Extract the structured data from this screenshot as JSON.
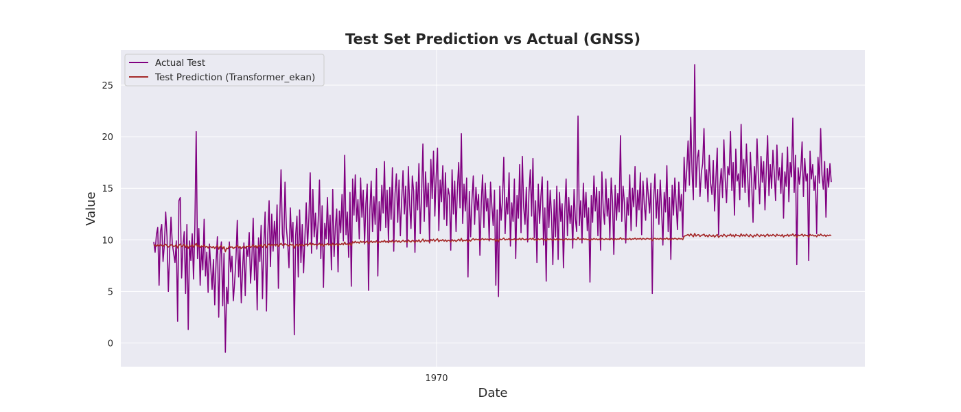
{
  "chart_data": {
    "type": "line",
    "title": "Test Set Prediction vs Actual (GNSS)",
    "xlabel": "Date",
    "ylabel": "Value",
    "x_ticks": [
      "1970"
    ],
    "y_ticks": [
      0,
      5,
      10,
      15,
      20,
      25
    ],
    "ylim": [
      -2.3,
      28.4
    ],
    "legend_position": "upper-left",
    "grid": true,
    "colors": {
      "background": "#eaeaf2",
      "grid": "#ffffff",
      "actual": "#800080",
      "prediction": "#a52a2a"
    },
    "series": [
      {
        "name": "Actual Test",
        "values": [
          9.8,
          8.8,
          10.5,
          11.2,
          5.6,
          10.8,
          11.5,
          7.9,
          9.5,
          12.7,
          10.3,
          5.0,
          8.9,
          12.2,
          9.6,
          8.7,
          7.8,
          9.9,
          2.1,
          13.8,
          14.1,
          6.3,
          9.4,
          10.8,
          4.8,
          11.5,
          1.3,
          9.9,
          8.0,
          10.6,
          6.2,
          11.3,
          20.5,
          8.2,
          11.1,
          5.6,
          9.3,
          7.1,
          12.0,
          6.5,
          8.8,
          4.9,
          9.6,
          7.3,
          5.2,
          8.1,
          3.7,
          7.9,
          10.3,
          2.5,
          8.6,
          9.8,
          3.6,
          8.7,
          -0.9,
          5.4,
          3.8,
          9.8,
          6.9,
          8.4,
          4.1,
          5.9,
          8.2,
          11.9,
          6.4,
          9.3,
          3.9,
          7.2,
          9.7,
          4.6,
          9.3,
          8.4,
          10.7,
          5.8,
          8.2,
          12.1,
          6.1,
          9.4,
          3.2,
          10.2,
          7.9,
          11.4,
          4.3,
          9.6,
          12.7,
          3.1,
          10.5,
          13.8,
          7.4,
          12.5,
          8.9,
          11.8,
          9.4,
          13.4,
          5.3,
          11.9,
          16.8,
          10.6,
          9.2,
          15.6,
          11.2,
          9.7,
          7.3,
          13.1,
          9.8,
          11.7,
          0.8,
          10.4,
          12.3,
          6.4,
          12.9,
          7.8,
          11.5,
          6.8,
          10.2,
          13.6,
          9.4,
          12.1,
          16.5,
          8.7,
          14.9,
          10.3,
          12.6,
          9.1,
          11.8,
          15.8,
          8.2,
          13.3,
          5.4,
          11.6,
          10.1,
          14.1,
          9.5,
          12.4,
          7.1,
          14.9,
          8.4,
          11.3,
          13.0,
          6.9,
          12.8,
          10.7,
          14.4,
          9.9,
          18.2,
          10.5,
          12.7,
          8.3,
          14.6,
          5.5,
          15.9,
          12.4,
          16.3,
          11.8,
          13.9,
          10.1,
          16.0,
          12.2,
          14.8,
          9.6,
          13.5,
          15.4,
          5.1,
          12.9,
          15.7,
          10.8,
          14.2,
          11.5,
          16.9,
          6.5,
          13.7,
          10.9,
          15.3,
          12.6,
          17.6,
          11.2,
          14.8,
          9.9,
          15.1,
          12.0,
          17.0,
          8.9,
          14.5,
          16.4,
          11.7,
          15.8,
          10.4,
          13.9,
          16.7,
          12.5,
          15.2,
          9.3,
          17.1,
          13.4,
          11.1,
          16.2,
          14.7,
          8.8,
          15.6,
          12.9,
          17.4,
          10.6,
          14.3,
          19.3,
          11.8,
          16.6,
          13.2,
          15.5,
          9.7,
          17.8,
          14.0,
          18.6,
          12.3,
          16.1,
          18.9,
          10.9,
          15.8,
          13.7,
          17.2,
          12.0,
          16.5,
          11.4,
          15.0,
          14.3,
          9.0,
          16.8,
          12.5,
          15.7,
          10.8,
          14.9,
          17.5,
          13.1,
          20.3,
          11.6,
          15.4,
          12.8,
          16.0,
          6.4,
          14.7,
          10.3,
          13.9,
          16.2,
          11.5,
          15.1,
          12.9,
          14.4,
          8.5,
          13.6,
          16.3,
          11.2,
          15.5,
          12.8,
          14.0,
          9.9,
          15.6,
          13.3,
          11.4,
          14.8,
          5.6,
          12.9,
          4.5,
          15.2,
          11.9,
          13.8,
          18.0,
          10.6,
          14.1,
          12.5,
          16.5,
          9.4,
          13.6,
          11.8,
          15.9,
          8.2,
          14.3,
          12.1,
          17.3,
          10.7,
          18.1,
          13.2,
          11.5,
          15.1,
          9.8,
          14.6,
          16.8,
          12.3,
          17.9,
          10.2,
          13.8,
          7.8,
          15.4,
          11.6,
          14.2,
          16.1,
          9.5,
          13.1,
          6.0,
          15.7,
          11.2,
          14.8,
          12.4,
          7.6,
          13.9,
          10.3,
          15.2,
          8.1,
          14.6,
          11.8,
          13.5,
          7.3,
          12.7,
          15.9,
          10.4,
          14.1,
          11.6,
          13.3,
          9.2,
          14.9,
          12.0,
          10.8,
          22.0,
          11.4,
          13.8,
          9.7,
          15.5,
          12.2,
          14.6,
          10.9,
          13.1,
          5.9,
          14.3,
          11.7,
          16.2,
          12.8,
          15.1,
          10.4,
          14.7,
          9.0,
          16.6,
          13.0,
          11.5,
          15.9,
          12.3,
          14.0,
          10.1,
          16.0,
          13.7,
          8.6,
          15.3,
          11.9,
          14.5,
          12.7,
          20.1,
          11.8,
          15.2,
          13.6,
          9.7,
          14.1,
          12.4,
          16.3,
          10.9,
          15.0,
          13.2,
          17.1,
          11.3,
          14.8,
          12.9,
          16.5,
          10.5,
          15.7,
          13.4,
          11.9,
          16.0,
          14.3,
          12.6,
          15.5,
          4.8,
          13.8,
          16.4,
          12.1,
          14.9,
          11.5,
          15.8,
          13.0,
          9.5,
          14.6,
          12.7,
          17.2,
          10.8,
          14.1,
          8.1,
          15.3,
          12.4,
          16.0,
          13.5,
          11.0,
          15.6,
          12.8,
          14.4,
          10.3,
          18.0,
          14.7,
          16.8,
          19.6,
          15.3,
          21.9,
          16.6,
          13.9,
          27.0,
          15.1,
          17.9,
          18.7,
          14.2,
          16.5,
          17.4,
          20.8,
          15.0,
          16.8,
          13.7,
          18.2,
          15.5,
          14.4,
          17.7,
          12.8,
          16.0,
          18.9,
          10.5,
          15.2,
          16.9,
          14.1,
          19.7,
          15.9,
          13.6,
          17.1,
          16.3,
          20.5,
          14.8,
          17.5,
          12.4,
          18.8,
          15.7,
          16.4,
          13.9,
          21.2,
          15.1,
          17.8,
          14.6,
          19.3,
          16.0,
          13.2,
          18.5,
          15.4,
          11.7,
          17.1,
          14.9,
          19.8,
          16.2,
          13.5,
          18.1,
          15.6,
          17.6,
          12.9,
          16.8,
          20.1,
          14.3,
          17.3,
          15.0,
          18.7,
          16.5,
          13.8,
          19.2,
          15.8,
          17.0,
          14.5,
          18.4,
          12.1,
          16.6,
          15.2,
          19.0,
          13.7,
          17.5,
          16.1,
          21.8,
          14.6,
          18.2,
          7.6,
          17.0,
          15.4,
          16.8,
          19.5,
          14.2,
          17.9,
          15.7,
          16.4,
          8.0,
          18.6,
          15.9,
          17.3,
          14.8,
          16.2,
          10.6,
          18.0,
          15.5,
          20.8,
          16.3,
          14.9,
          17.6,
          12.2,
          16.9,
          15.1,
          17.4,
          15.6
        ],
        "color": "#800080"
      },
      {
        "name": "Test Prediction (Transformer_ekan)",
        "values": [
          9.45,
          9.5,
          9.38,
          9.52,
          9.41,
          9.55,
          9.46,
          9.37,
          9.49,
          9.58,
          9.44,
          9.3,
          9.42,
          9.54,
          9.47,
          9.35,
          9.4,
          9.51,
          9.22,
          9.48,
          9.6,
          9.33,
          9.45,
          9.56,
          9.28,
          9.5,
          9.18,
          9.43,
          9.36,
          9.52,
          9.3,
          9.49,
          9.65,
          9.34,
          9.47,
          9.26,
          9.41,
          9.32,
          9.5,
          9.29,
          9.38,
          9.21,
          9.4,
          9.31,
          9.24,
          9.36,
          9.15,
          9.33,
          9.44,
          9.1,
          9.35,
          9.42,
          9.12,
          9.34,
          8.85,
          9.2,
          9.14,
          9.41,
          9.27,
          9.33,
          9.16,
          9.25,
          9.32,
          9.46,
          9.24,
          9.36,
          9.15,
          9.28,
          9.4,
          9.2,
          9.38,
          9.34,
          9.45,
          9.27,
          9.35,
          9.52,
          9.3,
          9.43,
          9.22,
          9.47,
          9.38,
          9.53,
          9.28,
          9.46,
          9.57,
          9.25,
          9.5,
          9.6,
          9.4,
          9.55,
          9.45,
          9.54,
          9.48,
          9.58,
          9.35,
          9.52,
          9.66,
          9.5,
          9.46,
          9.63,
          9.53,
          9.49,
          9.4,
          9.56,
          9.5,
          9.54,
          9.2,
          9.48,
          9.57,
          9.38,
          9.58,
          9.45,
          9.55,
          9.42,
          9.5,
          9.6,
          9.48,
          9.56,
          9.7,
          9.46,
          9.64,
          9.51,
          9.58,
          9.47,
          9.55,
          9.68,
          9.44,
          9.6,
          9.38,
          9.57,
          9.52,
          9.65,
          9.5,
          9.59,
          9.42,
          9.67,
          9.46,
          9.56,
          9.62,
          9.43,
          9.6,
          9.53,
          9.66,
          9.52,
          9.78,
          9.55,
          9.62,
          9.48,
          9.7,
          9.45,
          9.82,
          9.7,
          9.86,
          9.72,
          9.8,
          9.68,
          9.88,
          9.75,
          9.84,
          9.7,
          9.8,
          9.87,
          9.62,
          9.78,
          9.89,
          9.74,
          9.84,
          9.76,
          9.92,
          9.66,
          9.82,
          9.76,
          9.88,
          9.8,
          9.95,
          9.77,
          9.86,
          9.73,
          9.89,
          9.8,
          9.96,
          9.72,
          9.87,
          9.93,
          9.79,
          9.91,
          9.76,
          9.85,
          9.97,
          9.82,
          9.91,
          9.74,
          9.99,
          9.86,
          9.79,
          9.95,
          9.9,
          9.73,
          9.94,
          9.84,
          10.0,
          9.78,
          9.9,
          10.08,
          9.83,
          9.98,
          9.88,
          9.95,
          9.77,
          10.04,
          9.92,
          10.06,
          9.86,
          9.99,
          10.1,
          9.82,
          9.97,
          9.91,
          10.03,
          9.87,
          10.0,
          9.85,
          9.96,
          9.93,
          9.8,
          10.02,
          9.89,
          9.98,
          9.84,
          9.95,
          10.06,
          9.9,
          10.14,
          9.86,
          9.97,
          9.91,
          10.01,
          9.78,
          9.99,
          9.88,
          10.04,
          10.12,
          9.98,
          10.08,
          10.02,
          10.06,
          9.9,
          10.05,
          10.13,
          10.0,
          10.09,
          10.04,
          10.07,
          9.96,
          10.1,
          10.05,
          10.0,
          10.08,
          9.85,
          10.04,
          9.82,
          10.09,
          10.01,
          10.07,
          10.17,
          9.99,
          10.06,
          10.03,
          10.12,
          9.95,
          10.05,
          10.02,
          10.11,
          9.92,
          10.07,
          10.03,
          10.15,
          10.0,
          10.16,
          10.05,
          10.01,
          10.09,
          9.97,
          10.07,
          10.13,
          10.04,
          10.16,
          9.99,
          10.06,
          9.93,
          10.1,
          10.02,
          10.08,
          10.12,
          9.97,
          10.05,
          9.9,
          10.11,
          10.02,
          10.09,
          10.04,
          9.94,
          10.08,
          10.0,
          10.1,
          9.95,
          10.08,
          10.03,
          10.06,
          9.92,
          10.05,
          10.13,
          10.01,
          10.08,
          10.03,
          10.06,
          9.98,
          10.1,
          10.04,
          10.01,
          10.24,
          10.03,
          10.08,
          9.99,
          10.12,
          10.05,
          10.09,
          10.02,
          10.06,
          9.9,
          10.08,
          10.03,
          10.13,
          10.05,
          10.1,
          10.01,
          10.09,
          9.97,
          10.14,
          10.06,
          10.03,
          10.12,
          10.05,
          10.08,
          10.0,
          10.13,
          10.08,
          9.96,
          10.11,
          10.04,
          10.09,
          10.06,
          10.22,
          10.05,
          10.11,
          10.08,
          10.0,
          10.09,
          10.05,
          10.14,
          10.02,
          10.1,
          10.07,
          10.17,
          10.04,
          10.12,
          10.08,
          10.15,
          10.03,
          10.14,
          10.09,
          10.05,
          10.15,
          10.11,
          10.07,
          10.13,
          9.92,
          10.1,
          10.16,
          10.06,
          10.13,
          10.05,
          10.15,
          10.09,
          10.0,
          10.12,
          10.08,
          10.19,
          10.04,
          10.11,
          9.98,
          10.14,
          10.07,
          10.16,
          10.1,
          10.04,
          10.15,
          10.08,
          10.12,
          10.02,
          10.35,
          10.4,
          10.45,
          10.52,
          10.38,
          10.58,
          10.44,
          10.3,
          10.62,
          10.36,
          10.48,
          10.5,
          10.32,
          10.44,
          10.47,
          10.55,
          10.34,
          10.45,
          10.29,
          10.49,
          10.38,
          10.33,
          10.47,
          10.27,
          10.41,
          10.52,
          10.24,
          10.37,
          10.46,
          10.33,
          10.54,
          10.42,
          10.3,
          10.47,
          10.4,
          10.56,
          10.35,
          10.48,
          10.28,
          10.52,
          10.4,
          10.44,
          10.32,
          10.58,
          10.37,
          10.49,
          10.35,
          10.54,
          10.42,
          10.31,
          10.51,
          10.39,
          10.26,
          10.47,
          10.36,
          10.55,
          10.43,
          10.32,
          10.5,
          10.4,
          10.48,
          10.3,
          10.46,
          10.55,
          10.35,
          10.47,
          10.38,
          10.52,
          10.44,
          10.33,
          10.54,
          10.41,
          10.46,
          10.36,
          10.51,
          10.28,
          10.45,
          10.39,
          10.53,
          10.34,
          10.48,
          10.42,
          10.58,
          10.37,
          10.5,
          10.22,
          10.47,
          10.4,
          10.46,
          10.55,
          10.36,
          10.5,
          10.41,
          10.44,
          10.26,
          10.53,
          10.42,
          10.48,
          10.37,
          10.44,
          10.3,
          10.5,
          10.4,
          10.56,
          10.43,
          10.38,
          10.48,
          10.33,
          10.46,
          10.39,
          10.47,
          10.41
        ],
        "color": "#a52a2a"
      }
    ]
  }
}
